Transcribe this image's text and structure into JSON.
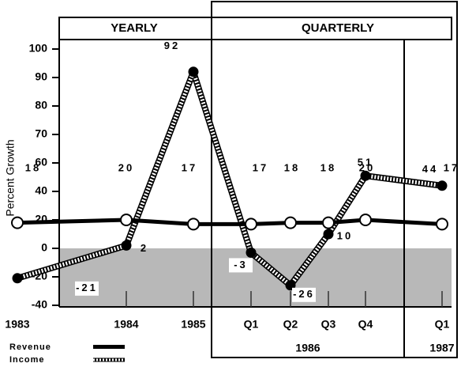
{
  "chart_data": {
    "type": "line",
    "panels": [
      "YEARLY",
      "QUARTERLY"
    ],
    "ylabel": "Percent Growth",
    "categories": [
      "1983",
      "1984",
      "1985",
      "Q1",
      "Q2",
      "Q3",
      "Q4",
      "Q1"
    ],
    "groups": [
      "1986",
      "1987"
    ],
    "series": [
      {
        "name": "Revenue",
        "color": "#000000",
        "values": [
          18,
          20,
          17,
          17,
          18,
          18,
          20,
          17
        ]
      },
      {
        "name": "Income",
        "color": "#000000",
        "values": [
          -21,
          2,
          92,
          -3,
          -26,
          10,
          51,
          44
        ]
      }
    ],
    "ylim": [
      -40,
      100
    ],
    "yticks": [
      100,
      90,
      80,
      70,
      60,
      40,
      20,
      0,
      -20,
      -40
    ]
  }
}
